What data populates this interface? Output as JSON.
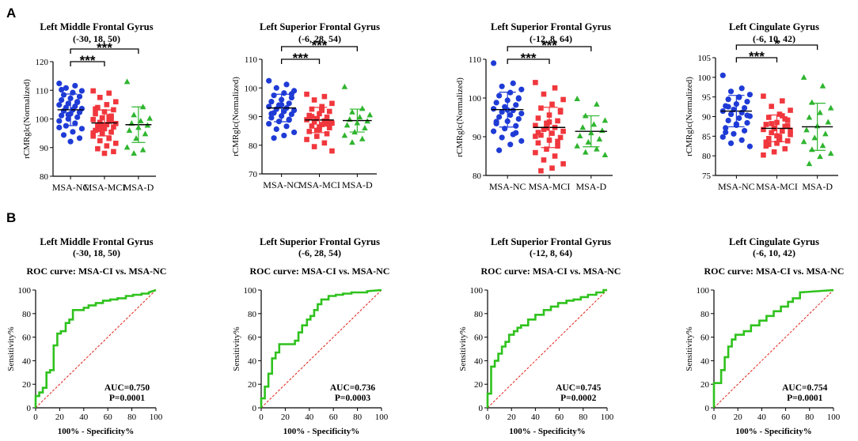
{
  "panels": {
    "a": "A",
    "b": "B"
  },
  "chart_data": [
    {
      "type": "scatter",
      "title": "Left Middle Frontal Gyrus",
      "subtitle": "(-30, 18, 50)",
      "ylabel": "rCMRglc(Normalized)",
      "ylim": [
        80,
        120
      ],
      "yticks": [
        80,
        90,
        100,
        110,
        120
      ],
      "categories": [
        "MSA-NC",
        "MSA-MCI",
        "MSA-D"
      ],
      "colors": [
        "#1f3bd6",
        "#f0373d",
        "#2fb52f"
      ],
      "markers": [
        "circle",
        "square",
        "triangle"
      ],
      "means": [
        103.2,
        98.6,
        98.0
      ],
      "sds": [
        5.5,
        4.5,
        6.2
      ],
      "series": [
        {
          "name": "MSA-NC",
          "values": [
            112.4,
            111.6,
            110.8,
            109.8,
            109.2,
            108.4,
            107.8,
            107.2,
            106.6,
            106.0,
            105.4,
            104.9,
            104.4,
            104.0,
            103.6,
            103.2,
            102.8,
            102.3,
            101.8,
            101.2,
            100.6,
            100.0,
            99.3,
            98.5,
            97.6,
            96.6,
            95.5,
            94.4,
            93.3,
            92.1,
            110.2,
            105.8,
            101.5,
            97.0
          ]
        },
        {
          "name": "MSA-MCI",
          "values": [
            109.8,
            109.0,
            107.5,
            106.0,
            105.0,
            104.0,
            103.2,
            102.5,
            101.8,
            101.0,
            100.4,
            99.8,
            99.2,
            98.8,
            98.4,
            98.0,
            97.6,
            97.2,
            96.6,
            96.0,
            95.4,
            94.8,
            94.0,
            93.2,
            92.4,
            91.5,
            90.6,
            89.6,
            88.6,
            88.0,
            103.5,
            99.5,
            97.9,
            95.1,
            100.8,
            96.3
          ]
        },
        {
          "name": "MSA-D",
          "values": [
            113.0,
            104.2,
            101.4,
            100.2,
            99.3,
            98.5,
            97.8,
            97.0,
            96.0,
            94.8,
            93.2,
            90.1,
            89.2,
            88.0
          ]
        }
      ],
      "comparisons": [
        {
          "from": "MSA-NC",
          "to": "MSA-MCI",
          "label": "***"
        },
        {
          "from": "MSA-NC",
          "to": "MSA-D",
          "label": "***"
        }
      ]
    },
    {
      "type": "scatter",
      "title": "Left Superior Frontal Gyrus",
      "subtitle": "(-6, 28, 54)",
      "ylabel": "rCMRglc(Normalized)",
      "ylim": [
        70,
        110
      ],
      "yticks": [
        70,
        80,
        90,
        100,
        110
      ],
      "categories": [
        "MSA-NC",
        "MSA-MCI",
        "MSA-D"
      ],
      "colors": [
        "#1f3bd6",
        "#f0373d",
        "#2fb52f"
      ],
      "markers": [
        "circle",
        "square",
        "triangle"
      ],
      "means": [
        93.0,
        88.8,
        88.6
      ],
      "sds": [
        4.8,
        4.4,
        4.0
      ],
      "series": [
        {
          "name": "MSA-NC",
          "values": [
            102.5,
            101.2,
            100.0,
            99.0,
            98.2,
            97.4,
            96.6,
            95.9,
            95.2,
            94.6,
            94.0,
            93.5,
            93.0,
            92.6,
            92.2,
            91.8,
            91.3,
            90.8,
            90.2,
            89.6,
            89.0,
            88.3,
            87.5,
            86.6,
            85.6,
            84.5,
            83.4,
            82.5,
            97.9,
            94.1,
            91.0,
            88.8
          ]
        },
        {
          "name": "MSA-MCI",
          "values": [
            97.8,
            97.0,
            95.8,
            94.6,
            93.5,
            92.6,
            91.8,
            91.0,
            90.4,
            89.8,
            89.3,
            88.9,
            88.5,
            88.1,
            87.7,
            87.2,
            86.7,
            86.1,
            85.5,
            84.8,
            84.0,
            83.1,
            82.0,
            80.8,
            79.5,
            78.0,
            92.2,
            90.0,
            88.0,
            86.4,
            89.6,
            87.4,
            85.2
          ]
        },
        {
          "name": "MSA-D",
          "values": [
            100.4,
            92.8,
            91.6,
            90.6,
            89.8,
            89.0,
            88.4,
            87.8,
            87.0,
            86.0,
            84.6,
            83.4,
            82.2,
            81.0
          ]
        }
      ],
      "comparisons": [
        {
          "from": "MSA-NC",
          "to": "MSA-MCI",
          "label": "***"
        },
        {
          "from": "MSA-NC",
          "to": "MSA-D",
          "label": "***"
        }
      ]
    },
    {
      "type": "scatter",
      "title": "Left Superior Frontal Gyrus",
      "subtitle": "(-12, 8, 64)",
      "ylabel": "rCMRglc(Normalized)",
      "ylim": [
        80,
        110
      ],
      "yticks": [
        80,
        90,
        100,
        110
      ],
      "categories": [
        "MSA-NC",
        "MSA-MCI",
        "MSA-D"
      ],
      "colors": [
        "#1f3bd6",
        "#f0373d",
        "#2fb52f"
      ],
      "markers": [
        "circle",
        "square",
        "triangle"
      ],
      "means": [
        97.0,
        92.4,
        91.4
      ],
      "sds": [
        4.5,
        5.2,
        4.0
      ],
      "series": [
        {
          "name": "MSA-NC",
          "values": [
            109.0,
            103.8,
            103.0,
            102.2,
            101.4,
            100.6,
            100.0,
            99.4,
            98.8,
            98.2,
            97.7,
            97.2,
            96.8,
            96.4,
            96.0,
            95.6,
            95.1,
            94.6,
            94.0,
            93.4,
            92.8,
            92.1,
            91.4,
            90.6,
            89.8,
            88.9,
            88.0,
            86.5,
            99.8,
            96.9,
            93.9,
            91.0
          ]
        },
        {
          "name": "MSA-MCI",
          "values": [
            104.0,
            102.6,
            101.0,
            99.6,
            98.4,
            97.4,
            96.4,
            95.6,
            94.8,
            94.1,
            93.5,
            92.9,
            92.4,
            91.9,
            91.4,
            90.9,
            90.4,
            89.8,
            89.1,
            88.4,
            87.6,
            86.8,
            85.9,
            85.0,
            84.0,
            83.0,
            81.9,
            81.2,
            96.8,
            93.8,
            91.1,
            88.8,
            92.2,
            90.1
          ]
        },
        {
          "name": "MSA-D",
          "values": [
            99.8,
            98.4,
            95.4,
            94.2,
            93.2,
            92.4,
            91.6,
            91.0,
            90.2,
            89.4,
            88.6,
            87.6,
            86.8,
            86.0,
            85.3
          ]
        }
      ],
      "comparisons": [
        {
          "from": "MSA-NC",
          "to": "MSA-MCI",
          "label": "***"
        },
        {
          "from": "MSA-NC",
          "to": "MSA-D",
          "label": "***"
        }
      ]
    },
    {
      "type": "scatter",
      "title": "Left Cingulate Gyrus",
      "subtitle": "(-6, 10, 42)",
      "ylabel": "rCMRglc(Normalized)",
      "ylim": [
        75,
        105
      ],
      "yticks": [
        75,
        80,
        85,
        90,
        95,
        100,
        105
      ],
      "categories": [
        "MSA-NC",
        "MSA-MCI",
        "MSA-D"
      ],
      "colors": [
        "#1f3bd6",
        "#f0373d",
        "#2fb52f"
      ],
      "markers": [
        "circle",
        "square",
        "triangle"
      ],
      "means": [
        91.4,
        87.0,
        87.4
      ],
      "sds": [
        4.0,
        3.4,
        6.0
      ],
      "series": [
        {
          "name": "MSA-NC",
          "values": [
            100.5,
            97.2,
            96.4,
            95.6,
            95.0,
            94.4,
            93.8,
            93.2,
            92.7,
            92.2,
            91.8,
            91.4,
            91.0,
            90.6,
            90.1,
            89.6,
            89.0,
            88.4,
            87.8,
            87.1,
            86.4,
            85.6,
            84.8,
            84.0,
            83.2,
            82.4,
            94.9,
            92.5,
            90.3,
            88.1,
            86.0
          ]
        },
        {
          "name": "MSA-MCI",
          "values": [
            95.2,
            94.0,
            92.6,
            91.6,
            90.6,
            89.8,
            89.1,
            88.5,
            88.0,
            87.5,
            87.1,
            86.7,
            86.3,
            85.9,
            85.4,
            84.9,
            84.4,
            83.8,
            83.2,
            82.5,
            81.8,
            81.0,
            80.2,
            90.2,
            88.2,
            86.5,
            84.1,
            82.9,
            87.7,
            85.1,
            83.5,
            89.4,
            86.9
          ]
        },
        {
          "name": "MSA-D",
          "values": [
            100.0,
            97.8,
            93.6,
            92.2,
            91.0,
            89.8,
            88.6,
            87.6,
            86.6,
            85.6,
            84.6,
            83.6,
            82.6,
            81.6,
            80.6,
            79.8,
            78.0
          ]
        }
      ],
      "comparisons": [
        {
          "from": "MSA-NC",
          "to": "MSA-MCI",
          "label": "***"
        },
        {
          "from": "MSA-NC",
          "to": "MSA-D",
          "label": "*"
        }
      ]
    },
    {
      "type": "line",
      "title": "Left Middle Frontal Gyrus",
      "subtitle": "(-30, 18, 50)",
      "roc_title": "ROC curve: MSA-CI vs. MSA-NC",
      "xlabel": "100% - Specificity%",
      "ylabel": "Sensitivity%",
      "xlim": [
        0,
        100
      ],
      "ylim": [
        0,
        100
      ],
      "ticks": [
        0,
        20,
        40,
        60,
        80,
        100
      ],
      "auc": "AUC=0.750",
      "p": "P=0.0001",
      "line_color": "#2fc21d",
      "ref_color": "#e2231a",
      "x": [
        0,
        0,
        3,
        3,
        6,
        6,
        9,
        9,
        12,
        12,
        15,
        15,
        18,
        18,
        21,
        21,
        25,
        25,
        28,
        28,
        31,
        31,
        40,
        40,
        44,
        44,
        50,
        50,
        56,
        56,
        62,
        62,
        68,
        68,
        75,
        75,
        81,
        81,
        88,
        88,
        94,
        94,
        100
      ],
      "y": [
        0,
        10,
        10,
        13,
        13,
        17,
        17,
        30,
        30,
        32,
        32,
        53,
        53,
        63,
        63,
        65,
        65,
        72,
        72,
        75,
        75,
        83,
        83,
        85,
        85,
        87,
        87,
        89,
        89,
        91,
        91,
        92,
        92,
        93,
        93,
        95,
        95,
        96,
        96,
        97,
        97,
        98,
        100
      ]
    },
    {
      "type": "line",
      "title": "Left Superior Frontal Gyrus",
      "subtitle": "(-6, 28, 54)",
      "roc_title": "ROC curve: MSA-CI vs. MSA-NC",
      "xlabel": "100% - Specificity%",
      "ylabel": "Sensitivity%",
      "xlim": [
        0,
        100
      ],
      "ylim": [
        0,
        100
      ],
      "ticks": [
        0,
        20,
        40,
        60,
        80,
        100
      ],
      "auc": "AUC=0.736",
      "p": "P=0.0003",
      "line_color": "#2fc21d",
      "ref_color": "#e2231a",
      "x": [
        0,
        0,
        3,
        3,
        6,
        6,
        9,
        9,
        12,
        12,
        15,
        15,
        28,
        28,
        31,
        31,
        34,
        34,
        38,
        38,
        41,
        41,
        44,
        44,
        47,
        47,
        50,
        50,
        56,
        56,
        62,
        62,
        68,
        68,
        75,
        75,
        88,
        88,
        100
      ],
      "y": [
        0,
        8,
        8,
        18,
        18,
        29,
        29,
        42,
        42,
        47,
        47,
        54,
        54,
        57,
        57,
        64,
        64,
        70,
        70,
        75,
        75,
        78,
        78,
        83,
        83,
        88,
        88,
        92,
        92,
        95,
        95,
        96,
        96,
        97,
        97,
        98,
        98,
        99,
        100
      ]
    },
    {
      "type": "line",
      "title": "Left Superior Frontal Gyrus",
      "subtitle": "(-12, 8, 64)",
      "roc_title": "ROC curve: MSA-CI vs. MSA-NC",
      "xlabel": "100% - Specificity%",
      "ylabel": "Sensitivity%",
      "xlim": [
        0,
        100
      ],
      "ylim": [
        0,
        100
      ],
      "ticks": [
        0,
        20,
        40,
        60,
        80,
        100
      ],
      "auc": "AUC=0.745",
      "p": "P=0.0002",
      "line_color": "#2fc21d",
      "ref_color": "#e2231a",
      "x": [
        0,
        0,
        3,
        3,
        6,
        6,
        9,
        9,
        12,
        12,
        15,
        15,
        18,
        18,
        22,
        22,
        25,
        25,
        28,
        28,
        34,
        34,
        40,
        40,
        47,
        47,
        53,
        53,
        59,
        59,
        66,
        66,
        72,
        72,
        78,
        78,
        84,
        84,
        91,
        91,
        97,
        97,
        100
      ],
      "y": [
        0,
        12,
        12,
        35,
        35,
        40,
        40,
        46,
        46,
        52,
        52,
        56,
        56,
        62,
        62,
        65,
        65,
        68,
        68,
        70,
        70,
        75,
        75,
        79,
        79,
        83,
        83,
        86,
        86,
        89,
        89,
        91,
        91,
        92,
        92,
        94,
        94,
        96,
        96,
        98,
        98,
        100,
        100
      ]
    },
    {
      "type": "line",
      "title": "Left Cingulate Gyrus",
      "subtitle": "(-6, 10, 42)",
      "roc_title": "ROC curve: MSA-CI vs. MSA-NC",
      "xlabel": "100% - Specificity%",
      "ylabel": "Sensitivity%",
      "xlim": [
        0,
        100
      ],
      "ylim": [
        0,
        100
      ],
      "ticks": [
        0,
        20,
        40,
        60,
        80,
        100
      ],
      "auc": "AUC=0.754",
      "p": "P=0.0001",
      "line_color": "#2fc21d",
      "ref_color": "#e2231a",
      "x": [
        0,
        0,
        6,
        6,
        9,
        9,
        12,
        12,
        15,
        15,
        18,
        18,
        25,
        25,
        31,
        31,
        38,
        38,
        44,
        44,
        50,
        50,
        56,
        56,
        62,
        62,
        66,
        66,
        72,
        72,
        100
      ],
      "y": [
        0,
        21,
        21,
        32,
        32,
        43,
        43,
        52,
        52,
        58,
        58,
        62,
        62,
        65,
        65,
        70,
        70,
        74,
        74,
        78,
        78,
        82,
        82,
        86,
        86,
        90,
        90,
        93,
        93,
        98,
        100
      ]
    }
  ]
}
